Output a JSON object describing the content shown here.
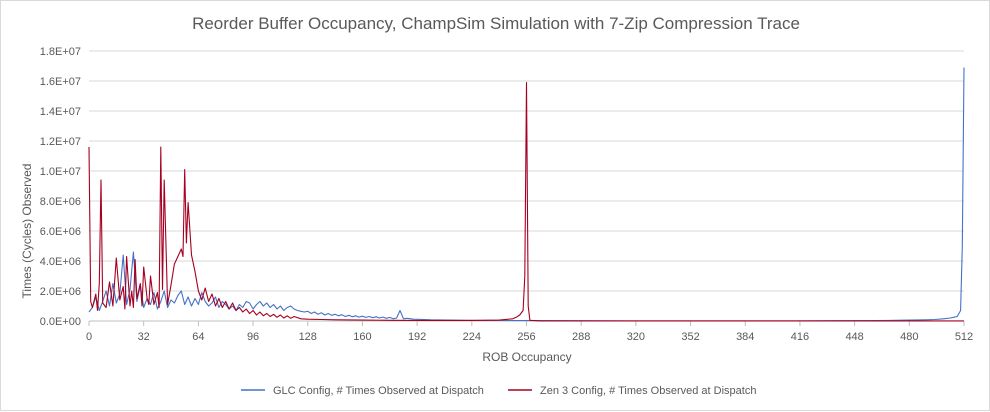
{
  "chart_data": {
    "type": "line",
    "title": "Reorder Buffer Occupancy, ChampSim Simulation with 7-Zip Compression Trace",
    "xlabel": "ROB Occupancy",
    "ylabel": "Times (Cycles) Observed",
    "xlim": [
      0,
      512
    ],
    "ylim": [
      0,
      18000000
    ],
    "x_ticks": [
      "0",
      "32",
      "64",
      "96",
      "128",
      "160",
      "192",
      "224",
      "256",
      "288",
      "320",
      "352",
      "384",
      "416",
      "448",
      "480",
      "512"
    ],
    "y_ticks": [
      "0.0E+00",
      "2.0E+06",
      "4.0E+06",
      "6.0E+06",
      "8.0E+06",
      "1.0E+07",
      "1.2E+07",
      "1.4E+07",
      "1.6E+07",
      "1.8E+07"
    ],
    "grid": "horizontal",
    "legend_position": "bottom",
    "series": [
      {
        "name": "GLC Config, # Times Observed at Dispatch",
        "color": "#4472c4",
        "points": [
          [
            0,
            600000
          ],
          [
            2,
            900000
          ],
          [
            4,
            1600000
          ],
          [
            6,
            700000
          ],
          [
            8,
            1300000
          ],
          [
            10,
            2000000
          ],
          [
            12,
            1000000
          ],
          [
            14,
            2500000
          ],
          [
            16,
            1200000
          ],
          [
            18,
            1800000
          ],
          [
            20,
            4400000
          ],
          [
            22,
            1100000
          ],
          [
            24,
            2100000
          ],
          [
            26,
            4600000
          ],
          [
            28,
            1300000
          ],
          [
            30,
            2400000
          ],
          [
            32,
            900000
          ],
          [
            34,
            1500000
          ],
          [
            36,
            1100000
          ],
          [
            38,
            1900000
          ],
          [
            40,
            800000
          ],
          [
            42,
            1300000
          ],
          [
            44,
            2000000
          ],
          [
            46,
            900000
          ],
          [
            48,
            1400000
          ],
          [
            50,
            1200000
          ],
          [
            52,
            1700000
          ],
          [
            54,
            2000000
          ],
          [
            56,
            1100000
          ],
          [
            58,
            1600000
          ],
          [
            60,
            1000000
          ],
          [
            62,
            1500000
          ],
          [
            64,
            1100000
          ],
          [
            66,
            1900000
          ],
          [
            68,
            1300000
          ],
          [
            70,
            1000000
          ],
          [
            72,
            1200000
          ],
          [
            74,
            1600000
          ],
          [
            76,
            900000
          ],
          [
            78,
            1300000
          ],
          [
            80,
            1100000
          ],
          [
            82,
            800000
          ],
          [
            84,
            1000000
          ],
          [
            86,
            700000
          ],
          [
            88,
            1100000
          ],
          [
            90,
            900000
          ],
          [
            92,
            1300000
          ],
          [
            94,
            1200000
          ],
          [
            96,
            800000
          ],
          [
            98,
            1100000
          ],
          [
            100,
            1300000
          ],
          [
            102,
            1000000
          ],
          [
            104,
            1200000
          ],
          [
            106,
            900000
          ],
          [
            108,
            1100000
          ],
          [
            110,
            800000
          ],
          [
            112,
            1000000
          ],
          [
            114,
            700000
          ],
          [
            116,
            900000
          ],
          [
            118,
            1000000
          ],
          [
            120,
            800000
          ],
          [
            122,
            700000
          ],
          [
            124,
            650000
          ],
          [
            126,
            600000
          ],
          [
            128,
            650000
          ],
          [
            130,
            500000
          ],
          [
            132,
            600000
          ],
          [
            134,
            450000
          ],
          [
            136,
            550000
          ],
          [
            138,
            400000
          ],
          [
            140,
            500000
          ],
          [
            142,
            380000
          ],
          [
            144,
            450000
          ],
          [
            146,
            350000
          ],
          [
            148,
            420000
          ],
          [
            150,
            300000
          ],
          [
            152,
            380000
          ],
          [
            154,
            280000
          ],
          [
            156,
            350000
          ],
          [
            158,
            260000
          ],
          [
            160,
            320000
          ],
          [
            162,
            240000
          ],
          [
            164,
            300000
          ],
          [
            166,
            220000
          ],
          [
            168,
            280000
          ],
          [
            170,
            200000
          ],
          [
            172,
            260000
          ],
          [
            174,
            180000
          ],
          [
            176,
            240000
          ],
          [
            178,
            150000
          ],
          [
            180,
            200000
          ],
          [
            182,
            700000
          ],
          [
            184,
            150000
          ],
          [
            186,
            180000
          ],
          [
            190,
            120000
          ],
          [
            196,
            100000
          ],
          [
            200,
            80000
          ],
          [
            210,
            60000
          ],
          [
            220,
            50000
          ],
          [
            230,
            40000
          ],
          [
            240,
            40000
          ],
          [
            250,
            30000
          ],
          [
            260,
            30000
          ],
          [
            280,
            20000
          ],
          [
            300,
            15000
          ],
          [
            320,
            10000
          ],
          [
            350,
            10000
          ],
          [
            380,
            10000
          ],
          [
            410,
            10000
          ],
          [
            440,
            20000
          ],
          [
            460,
            30000
          ],
          [
            480,
            60000
          ],
          [
            490,
            80000
          ],
          [
            495,
            100000
          ],
          [
            500,
            150000
          ],
          [
            504,
            200000
          ],
          [
            506,
            250000
          ],
          [
            508,
            300000
          ],
          [
            510,
            700000
          ],
          [
            511,
            5000000
          ],
          [
            512,
            16900000
          ]
        ]
      },
      {
        "name": "Zen 3 Config, # Times Observed at Dispatch",
        "color": "#a50021",
        "points": [
          [
            0,
            11600000
          ],
          [
            1,
            1300000
          ],
          [
            2,
            900000
          ],
          [
            4,
            1800000
          ],
          [
            5,
            700000
          ],
          [
            6,
            2500000
          ],
          [
            7,
            9400000
          ],
          [
            8,
            1200000
          ],
          [
            10,
            900000
          ],
          [
            12,
            2600000
          ],
          [
            14,
            1000000
          ],
          [
            16,
            4200000
          ],
          [
            18,
            1400000
          ],
          [
            20,
            2300000
          ],
          [
            21,
            800000
          ],
          [
            22,
            4300000
          ],
          [
            24,
            1000000
          ],
          [
            25,
            2000000
          ],
          [
            26,
            900000
          ],
          [
            27,
            4100000
          ],
          [
            28,
            1500000
          ],
          [
            30,
            2500000
          ],
          [
            31,
            1000000
          ],
          [
            32,
            3600000
          ],
          [
            34,
            1500000
          ],
          [
            35,
            1100000
          ],
          [
            36,
            3000000
          ],
          [
            38,
            1100000
          ],
          [
            40,
            1900000
          ],
          [
            41,
            900000
          ],
          [
            42,
            11600000
          ],
          [
            43,
            2100000
          ],
          [
            44,
            9400000
          ],
          [
            46,
            1100000
          ],
          [
            48,
            2400000
          ],
          [
            50,
            3800000
          ],
          [
            52,
            4300000
          ],
          [
            54,
            4800000
          ],
          [
            55,
            4300000
          ],
          [
            56,
            10100000
          ],
          [
            57,
            5200000
          ],
          [
            58,
            7900000
          ],
          [
            60,
            4400000
          ],
          [
            62,
            3300000
          ],
          [
            64,
            2000000
          ],
          [
            66,
            1400000
          ],
          [
            68,
            2200000
          ],
          [
            70,
            1300000
          ],
          [
            72,
            1800000
          ],
          [
            74,
            1000000
          ],
          [
            76,
            1500000
          ],
          [
            78,
            900000
          ],
          [
            80,
            1300000
          ],
          [
            82,
            800000
          ],
          [
            84,
            1200000
          ],
          [
            86,
            700000
          ],
          [
            88,
            900000
          ],
          [
            90,
            600000
          ],
          [
            92,
            800000
          ],
          [
            94,
            500000
          ],
          [
            96,
            700000
          ],
          [
            98,
            400000
          ],
          [
            100,
            600000
          ],
          [
            102,
            350000
          ],
          [
            104,
            500000
          ],
          [
            106,
            300000
          ],
          [
            108,
            450000
          ],
          [
            110,
            250000
          ],
          [
            112,
            400000
          ],
          [
            114,
            200000
          ],
          [
            116,
            350000
          ],
          [
            118,
            180000
          ],
          [
            120,
            300000
          ],
          [
            124,
            150000
          ],
          [
            128,
            120000
          ],
          [
            136,
            100000
          ],
          [
            144,
            80000
          ],
          [
            152,
            70000
          ],
          [
            160,
            60000
          ],
          [
            176,
            50000
          ],
          [
            192,
            40000
          ],
          [
            208,
            40000
          ],
          [
            224,
            40000
          ],
          [
            240,
            60000
          ],
          [
            248,
            150000
          ],
          [
            250,
            250000
          ],
          [
            252,
            400000
          ],
          [
            254,
            700000
          ],
          [
            255,
            3000000
          ],
          [
            256,
            15900000
          ],
          [
            257,
            1000000
          ],
          [
            258,
            50000
          ],
          [
            264,
            10000
          ],
          [
            280,
            5000
          ],
          [
            320,
            5000
          ],
          [
            400,
            5000
          ],
          [
            512,
            5000
          ]
        ]
      }
    ]
  }
}
